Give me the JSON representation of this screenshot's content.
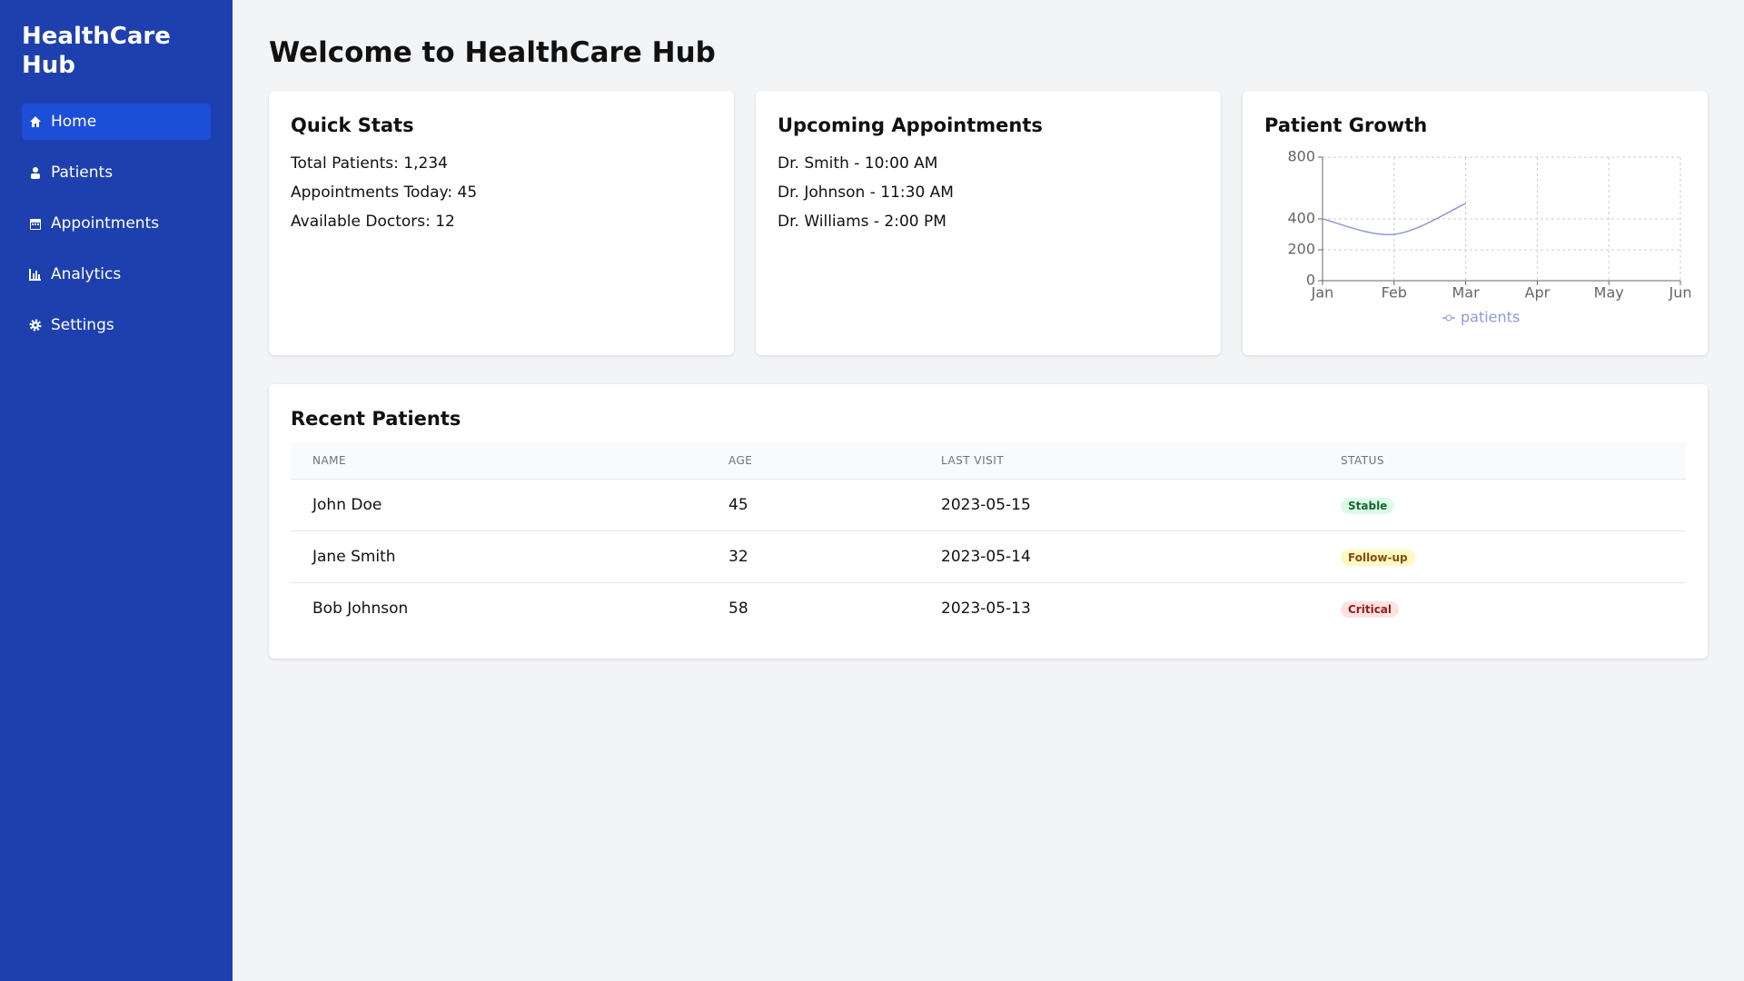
{
  "sidebar": {
    "title": "HealthCare Hub",
    "nav": [
      "Home",
      "Patients",
      "Appointments",
      "Analytics",
      "Settings"
    ]
  },
  "header": {
    "title": "Welcome to HealthCare Hub"
  },
  "quick_stats": {
    "title": "Quick Stats",
    "items": [
      "Total Patients: 1,234",
      "Appointments Today: 45",
      "Available Doctors: 12"
    ]
  },
  "appointments": {
    "title": "Upcoming Appointments",
    "items": [
      "Dr. Smith - 10:00 AM",
      "Dr. Johnson - 11:30 AM",
      "Dr. Williams - 2:00 PM"
    ]
  },
  "chart_data": {
    "type": "line",
    "title": "Patient Growth",
    "categories": [
      "Jan",
      "Feb",
      "Mar",
      "Apr",
      "May",
      "Jun"
    ],
    "series": [
      {
        "name": "patients",
        "color": "#8e9bd4",
        "values": [
          400,
          300,
          500,
          null,
          null,
          null
        ]
      }
    ],
    "ylim": [
      0,
      800
    ],
    "yticks": [
      0,
      200,
      400,
      800
    ],
    "grid": true,
    "legend": "bottom"
  },
  "table": {
    "title": "Recent Patients",
    "columns": [
      "NAME",
      "AGE",
      "LAST VISIT",
      "STATUS"
    ],
    "rows": [
      [
        "John Doe",
        45,
        "2023-05-15",
        "Stable"
      ],
      [
        "Jane Smith",
        32,
        "2023-05-14",
        "Follow-up"
      ],
      [
        "Bob Johnson",
        58,
        "2023-05-13",
        "Critical"
      ]
    ]
  }
}
